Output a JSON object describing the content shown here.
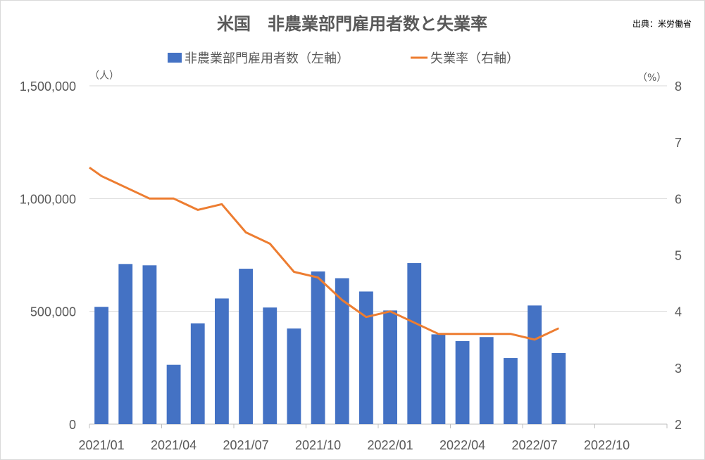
{
  "chart_data": {
    "type": "bar+line",
    "title": "米国　非農業部門雇用者数と失業率",
    "source": "出典：米労働省",
    "left_unit": "（人）",
    "right_unit": "（%）",
    "legend": [
      {
        "label": "非農業部門雇用者数（左軸）",
        "color": "#4472c4",
        "kind": "bar"
      },
      {
        "label": "失業率（右軸）",
        "color": "#ed7d31",
        "kind": "line"
      }
    ],
    "x_labels": [
      "2021/01",
      "2021/04",
      "2021/07",
      "2021/10",
      "2022/01",
      "2022/04",
      "2022/07",
      "2022/10"
    ],
    "left_axis": {
      "min": 0,
      "max": 1500000,
      "ticks": [
        "0",
        "500,000",
        "1,000,000",
        "1,500,000"
      ],
      "tick_values": [
        0,
        500000,
        1000000,
        1500000
      ]
    },
    "right_axis": {
      "min": 2,
      "max": 8,
      "ticks": [
        "2",
        "3",
        "4",
        "5",
        "6",
        "7",
        "8"
      ]
    },
    "months": [
      "2021/01",
      "2021/02",
      "2021/03",
      "2021/04",
      "2021/05",
      "2021/06",
      "2021/07",
      "2021/08",
      "2021/09",
      "2021/10",
      "2021/11",
      "2021/12",
      "2022/01",
      "2022/02",
      "2022/03",
      "2022/04",
      "2022/05",
      "2022/06",
      "2022/07",
      "2022/08",
      "2022/09",
      "2022/10",
      "2022/11",
      "2022/12"
    ],
    "series": [
      {
        "name": "非農業部門雇用者数（左軸）",
        "axis": "left",
        "type": "bar",
        "values": [
          520000,
          710000,
          704000,
          263000,
          447000,
          557000,
          689000,
          517000,
          424000,
          677000,
          647000,
          588000,
          504000,
          714000,
          398000,
          368000,
          386000,
          293000,
          526000,
          315000,
          null,
          null,
          null,
          null
        ]
      },
      {
        "name": "失業率（右軸）",
        "axis": "right",
        "type": "line",
        "values": [
          6.4,
          6.2,
          6.0,
          6.0,
          5.8,
          5.9,
          5.4,
          5.2,
          4.7,
          4.6,
          4.2,
          3.9,
          4.0,
          3.8,
          3.6,
          3.6,
          3.6,
          3.6,
          3.5,
          3.7,
          null,
          null,
          null,
          null
        ]
      }
    ],
    "line_start_value": 6.55,
    "grid": true
  }
}
